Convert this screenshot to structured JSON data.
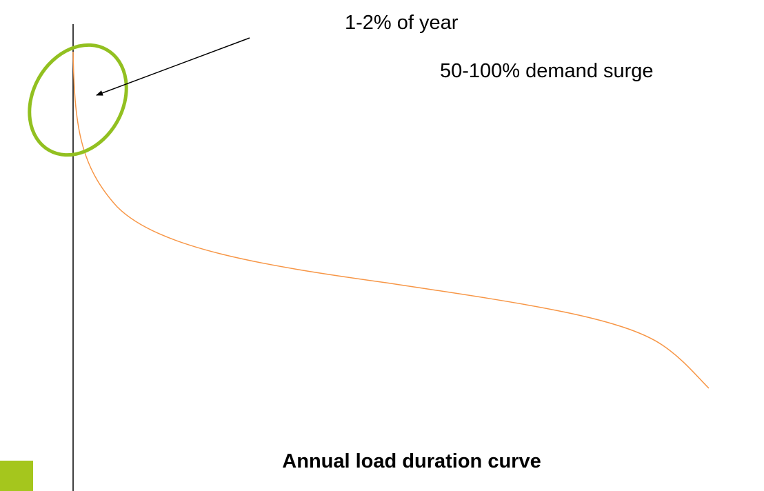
{
  "annotations": {
    "duration": "1-2% of year",
    "surge": "50-100% demand surge"
  },
  "caption": "Annual load duration curve"
}
